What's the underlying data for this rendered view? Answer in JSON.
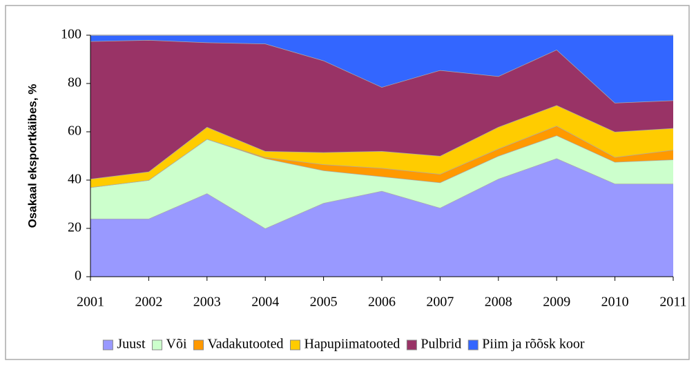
{
  "chart_data": {
    "type": "stacked-area",
    "y_label": "Osakaal eksportkäibes, %",
    "categories": [
      "2001",
      "2002",
      "2003",
      "2004",
      "2005",
      "2006",
      "2007",
      "2008",
      "2009",
      "2010",
      "2011"
    ],
    "series": [
      {
        "name": "Juust",
        "color": "#9999ff",
        "values": [
          24,
          24,
          34.5,
          20,
          30.5,
          35.5,
          28.5,
          40.5,
          49,
          38.5,
          38.5
        ]
      },
      {
        "name": "Või",
        "color": "#ccffcc",
        "values": [
          13,
          16,
          22.5,
          29,
          13.5,
          6,
          10.5,
          9.5,
          9.5,
          9,
          10
        ]
      },
      {
        "name": "Vadakutooted",
        "color": "#ff9900",
        "values": [
          0,
          0,
          0,
          0.5,
          2.5,
          3.5,
          3.5,
          3,
          4,
          2,
          4
        ]
      },
      {
        "name": "Hapupiimatooted",
        "color": "#ffcc00",
        "values": [
          3.5,
          3.5,
          5,
          2.5,
          5,
          7,
          7.5,
          9,
          8.5,
          10.5,
          9
        ]
      },
      {
        "name": "Pulbrid",
        "color": "#993366",
        "values": [
          57,
          54.5,
          35,
          44.5,
          38,
          26.5,
          35.5,
          21,
          23,
          12,
          11.5
        ]
      },
      {
        "name": "Piim ja rõõsk koor",
        "color": "#3366ff",
        "values": [
          2.5,
          2,
          3,
          3.5,
          10.5,
          21.5,
          14.5,
          17,
          6,
          28,
          27
        ]
      }
    ],
    "ylim": [
      0,
      100
    ],
    "yticks": [
      0,
      20,
      40,
      60,
      80,
      100
    ],
    "grid": false,
    "legend": "bottom"
  }
}
